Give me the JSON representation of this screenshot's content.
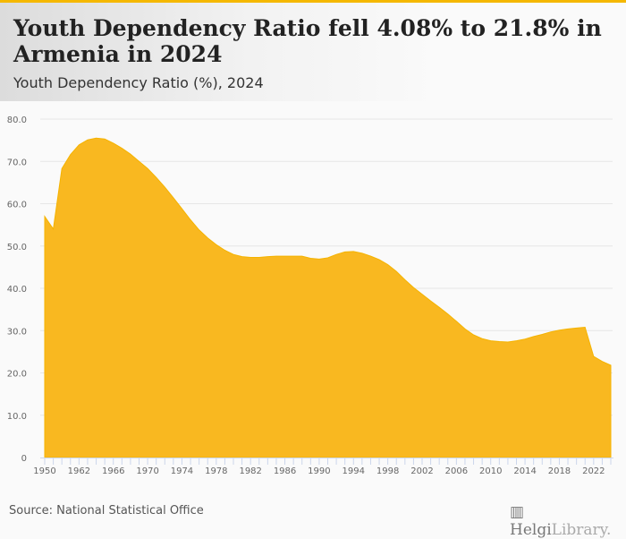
{
  "header": {
    "title": "Youth Dependency Ratio fell 4.08% to 21.8% in Armenia in 2024",
    "subtitle": "Youth Dependency Ratio (%), 2024"
  },
  "footer": {
    "source": "Source: National Statistical Office",
    "logo_main": "Helgi",
    "logo_sub": "Library."
  },
  "colors": {
    "accent": "#f5b800",
    "area": "#f9b820",
    "grid": "#e6e6e6"
  },
  "chart_data": {
    "type": "area",
    "title": "Youth Dependency Ratio (%), 2024",
    "xlabel": "",
    "ylabel": "",
    "ylim": [
      0,
      80
    ],
    "yticks": [
      "0",
      "10.0",
      "20.0",
      "30.0",
      "40.0",
      "50.0",
      "60.0",
      "70.0",
      "80.0"
    ],
    "grid": true,
    "x": [
      1950,
      1955,
      1960,
      1961,
      1962,
      1963,
      1964,
      1965,
      1966,
      1967,
      1968,
      1969,
      1970,
      1971,
      1972,
      1973,
      1974,
      1975,
      1976,
      1977,
      1978,
      1979,
      1980,
      1981,
      1982,
      1983,
      1984,
      1985,
      1986,
      1987,
      1988,
      1989,
      1990,
      1991,
      1992,
      1993,
      1994,
      1995,
      1996,
      1997,
      1998,
      1999,
      2000,
      2001,
      2002,
      2003,
      2004,
      2005,
      2006,
      2007,
      2008,
      2009,
      2010,
      2011,
      2012,
      2013,
      2014,
      2015,
      2016,
      2017,
      2018,
      2019,
      2020,
      2021,
      2022,
      2023,
      2024
    ],
    "values": [
      57.0,
      54.0,
      68.3,
      71.6,
      73.9,
      75.1,
      75.5,
      75.3,
      74.3,
      73.1,
      71.7,
      70.0,
      68.3,
      66.2,
      63.9,
      61.4,
      58.8,
      56.2,
      53.8,
      51.9,
      50.3,
      49.0,
      48.0,
      47.5,
      47.3,
      47.3,
      47.5,
      47.6,
      47.6,
      47.6,
      47.6,
      47.1,
      46.9,
      47.2,
      48.0,
      48.6,
      48.7,
      48.3,
      47.6,
      46.8,
      45.6,
      44.0,
      42.0,
      40.2,
      38.6,
      37.0,
      35.5,
      33.9,
      32.2,
      30.4,
      29.0,
      28.1,
      27.6,
      27.4,
      27.3,
      27.6,
      28.0,
      28.6,
      29.1,
      29.7,
      30.1,
      30.4,
      30.6,
      30.8,
      23.9,
      22.7,
      21.8
    ]
  }
}
